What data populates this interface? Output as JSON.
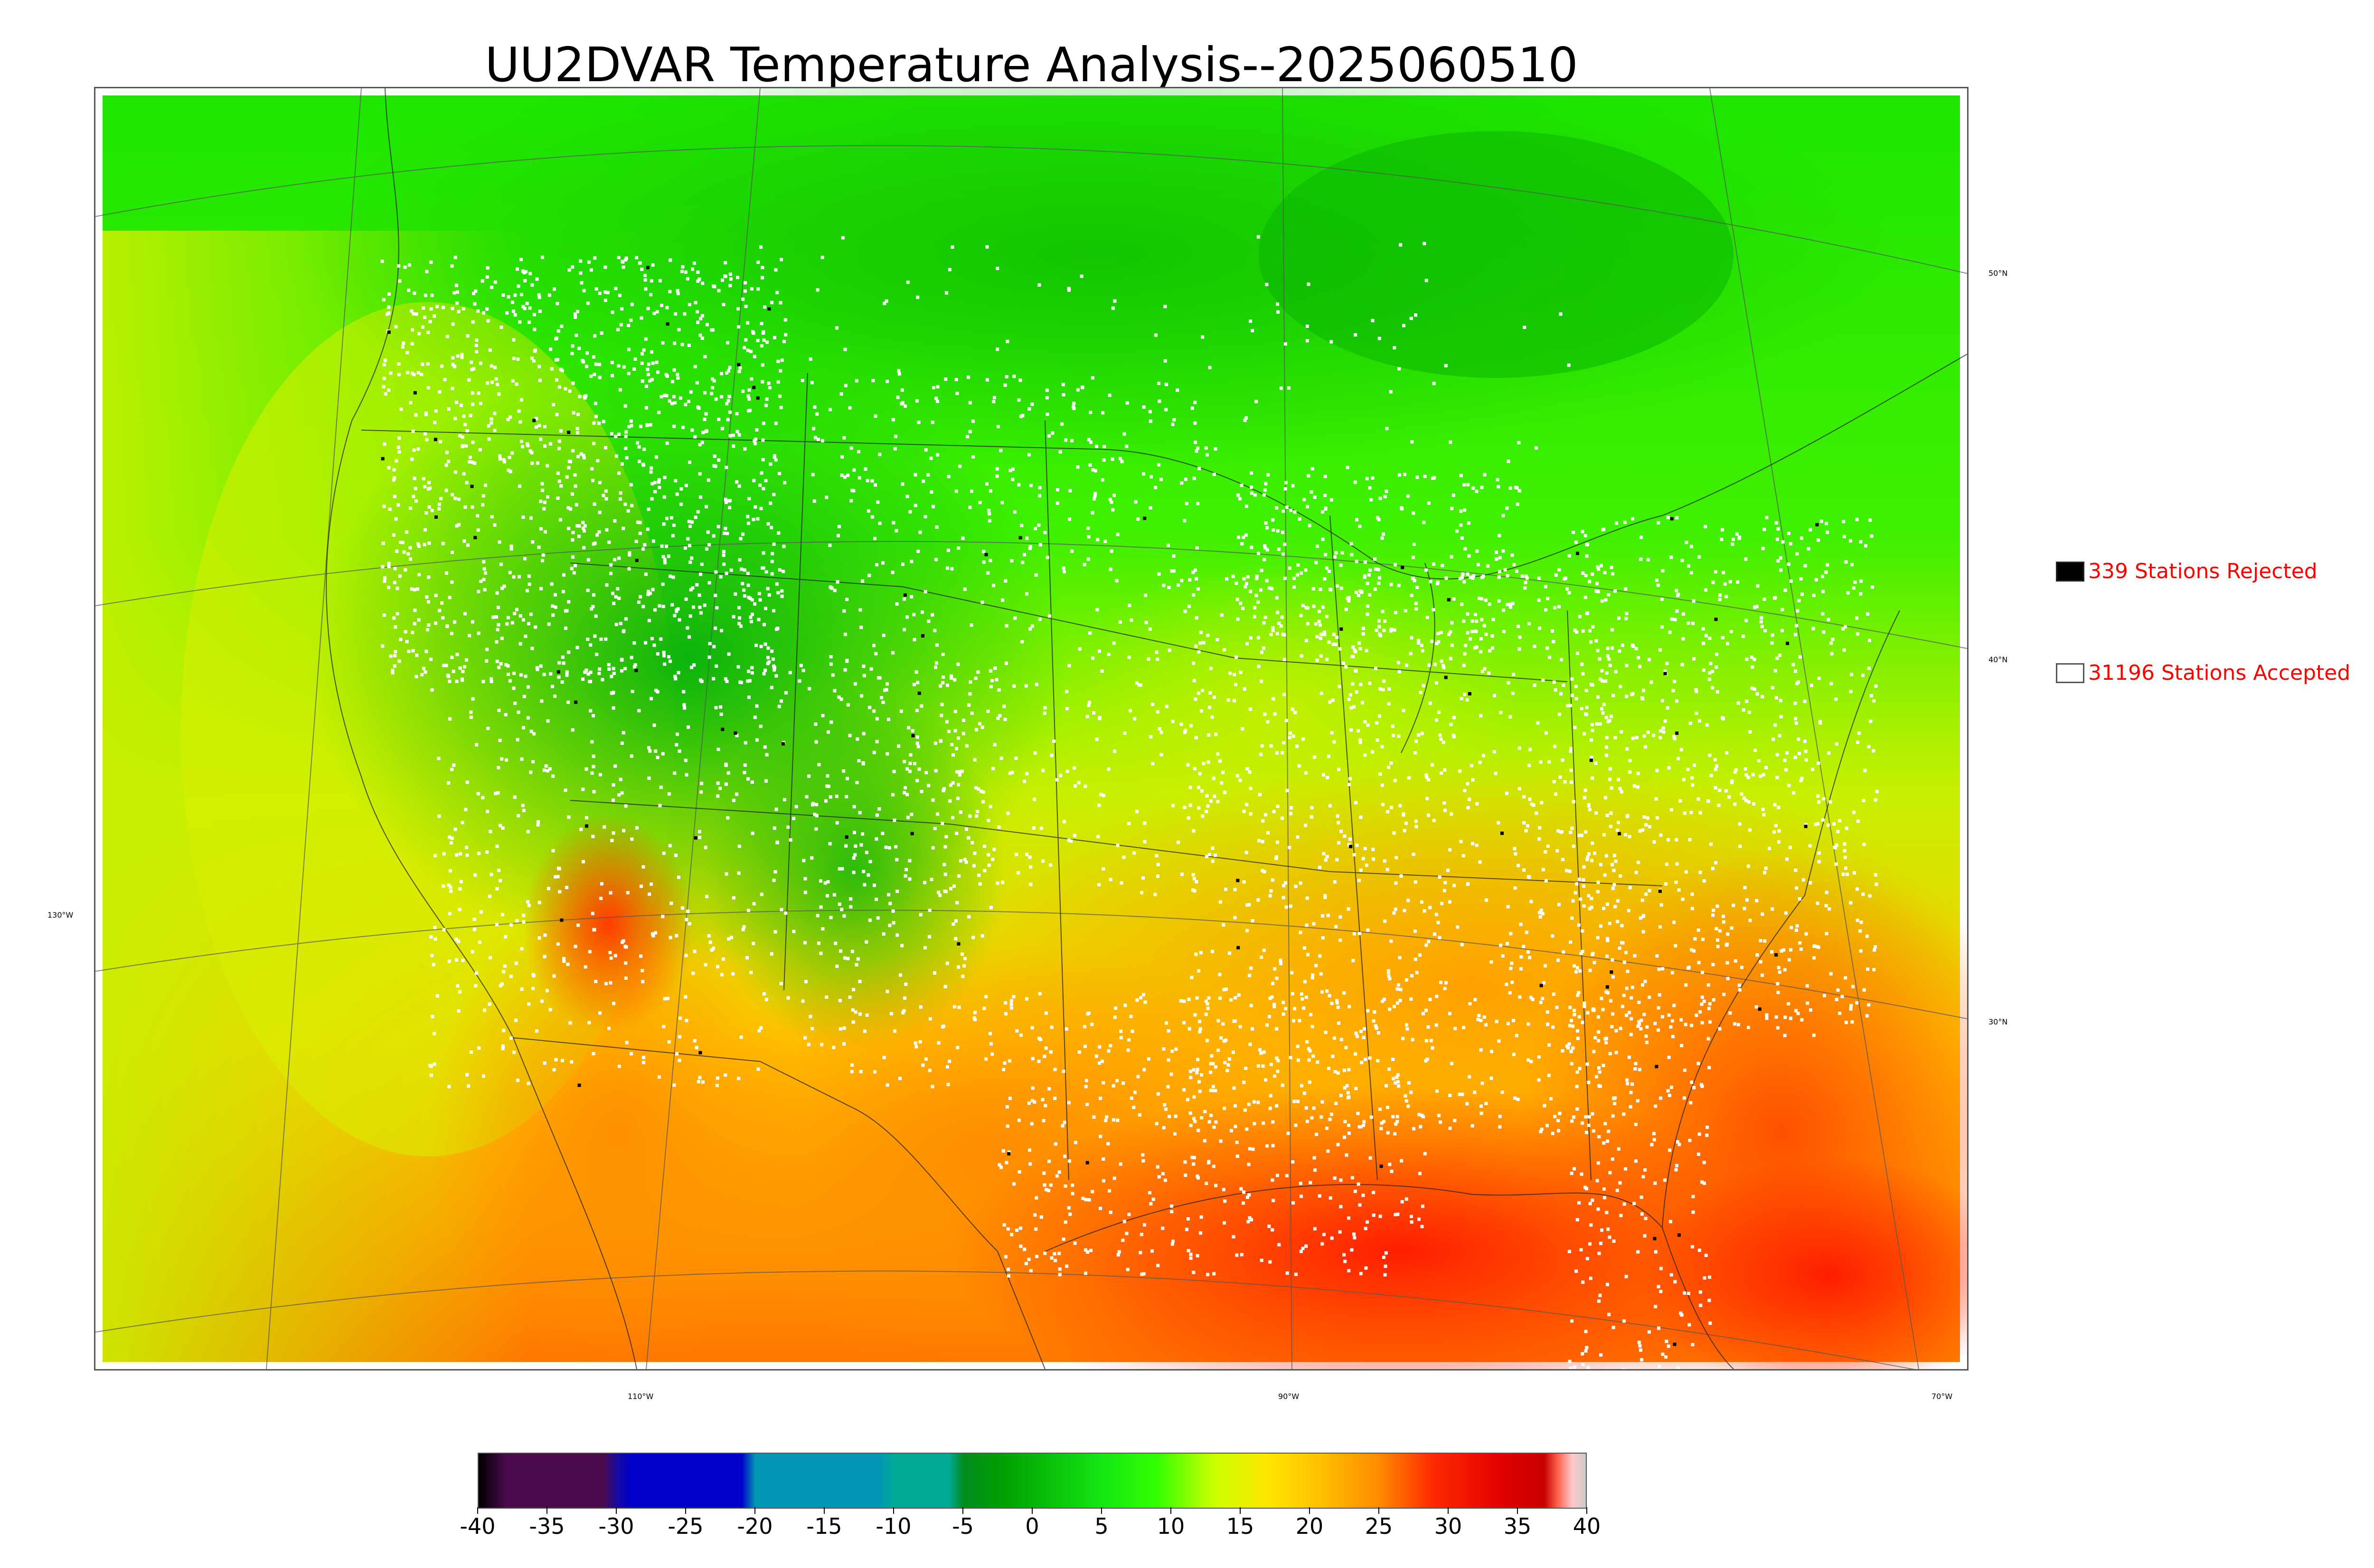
{
  "title": "UU2DVAR Temperature Analysis--2025060510",
  "map": {
    "latitude_labels": [
      {
        "text": "50°N"
      },
      {
        "text": "40°N"
      },
      {
        "text": "30°N"
      }
    ],
    "longitude_labels": [
      {
        "text": "130°W"
      },
      {
        "text": "110°W"
      },
      {
        "text": "90°W"
      },
      {
        "text": "70°W"
      }
    ]
  },
  "legend": {
    "rejected": {
      "count": "339",
      "label": "339 Stations Rejected",
      "color": "#000000"
    },
    "accepted": {
      "count": "31196",
      "label": "31196 Stations Accepted",
      "color": "#ffffff"
    }
  },
  "colorbar": {
    "min": -40,
    "max": 40,
    "ticks": [
      "-40",
      "-35",
      "-30",
      "-25",
      "-20",
      "-15",
      "-10",
      "-5",
      "0",
      "5",
      "10",
      "15",
      "20",
      "25",
      "30",
      "35",
      "40"
    ],
    "stops": [
      {
        "value": -40,
        "color": "#000000"
      },
      {
        "value": -38,
        "color": "#4b0a4b"
      },
      {
        "value": -31,
        "color": "#4b0a4b"
      },
      {
        "value": -30,
        "color": "#1a0aa0"
      },
      {
        "value": -29,
        "color": "#0000c8"
      },
      {
        "value": -21,
        "color": "#0000c8"
      },
      {
        "value": -20,
        "color": "#0096b4"
      },
      {
        "value": -11,
        "color": "#0096b4"
      },
      {
        "value": -10,
        "color": "#00aa96"
      },
      {
        "value": -6,
        "color": "#00aa96"
      },
      {
        "value": -5,
        "color": "#008c1e"
      },
      {
        "value": -2,
        "color": "#00a000"
      },
      {
        "value": 5,
        "color": "#14e614"
      },
      {
        "value": 9,
        "color": "#32ff00"
      },
      {
        "value": 13,
        "color": "#c8ff00"
      },
      {
        "value": 17,
        "color": "#ffe600"
      },
      {
        "value": 21,
        "color": "#ffbe00"
      },
      {
        "value": 25,
        "color": "#ff8c00"
      },
      {
        "value": 29,
        "color": "#ff2800"
      },
      {
        "value": 34,
        "color": "#e10000"
      },
      {
        "value": 37,
        "color": "#c80000"
      },
      {
        "value": 38,
        "color": "#ff6450"
      },
      {
        "value": 39,
        "color": "#ffc8c8"
      },
      {
        "value": 40,
        "color": "#cccccc"
      }
    ]
  },
  "colors": {
    "ocean_south": "#ff1e00",
    "ocean_pacific": "#e6f000",
    "canada": "#1edc00",
    "rockies": "#10c410",
    "plains": "#c8f000",
    "south": "#ffb400",
    "desert": "#ff5a00"
  }
}
